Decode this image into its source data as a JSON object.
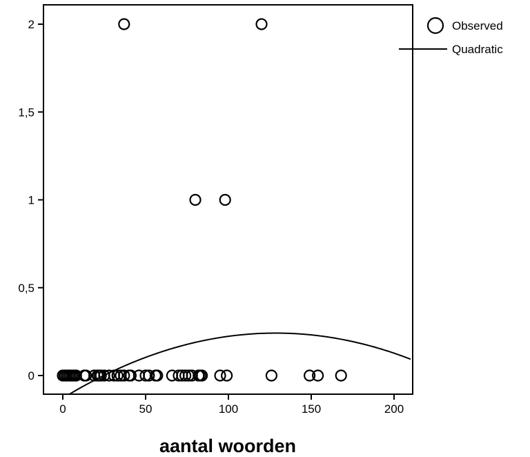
{
  "chart_data": {
    "type": "scatter",
    "title": "",
    "xlabel": "aantal woorden",
    "ylabel": "",
    "xlim": [
      -12,
      210
    ],
    "ylim": [
      -0.1,
      2.12
    ],
    "xticks": [
      0,
      50,
      100,
      150,
      200
    ],
    "xtick_labels": [
      "0",
      "50",
      "100",
      "150",
      "200"
    ],
    "yticks": [
      0,
      0.5,
      1,
      1.5,
      2
    ],
    "ytick_labels": [
      "0",
      "0,5",
      "1",
      "1,5",
      "2"
    ],
    "grid": false,
    "legend_position": "right-top",
    "series": [
      {
        "name": "Observed",
        "type": "scatter",
        "marker": "open-circle",
        "x": [
          37,
          120,
          80,
          98,
          0,
          1,
          2,
          3,
          4,
          5,
          6,
          7,
          8,
          13,
          14,
          19,
          21,
          22,
          23,
          25,
          28,
          31,
          33,
          35,
          37,
          40,
          41,
          46,
          50,
          52,
          56,
          57,
          66,
          70,
          72,
          74,
          76,
          78,
          82,
          83,
          84,
          95,
          99,
          126,
          149,
          154,
          168
        ],
        "y": [
          2,
          2,
          1,
          1,
          0,
          0,
          0,
          0,
          0,
          0,
          0,
          0,
          0,
          0,
          0,
          0,
          0,
          0,
          0,
          0,
          0,
          0,
          0,
          0,
          0,
          0,
          0,
          0,
          0,
          0,
          0,
          0,
          0,
          0,
          0,
          0,
          0,
          0,
          0,
          0,
          0,
          0,
          0,
          0,
          0,
          0,
          0
        ]
      },
      {
        "name": "Quadratic",
        "type": "line",
        "coefficients": {
          "a": -2.24e-05,
          "b": 0.00576,
          "c": -0.1287
        }
      }
    ]
  },
  "colors": {
    "marks": "#000000",
    "background": "#ffffff"
  }
}
